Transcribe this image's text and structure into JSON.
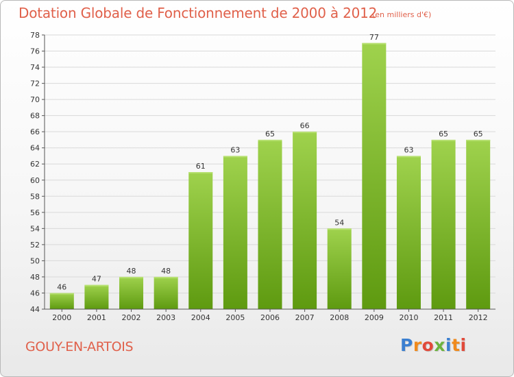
{
  "header": {
    "title": "Dotation Globale de Fonctionnement de 2000 à 2012",
    "unit": "(en milliers d'€)"
  },
  "footer": {
    "city": "GOUY-EN-ARTOIS",
    "logo_letters": [
      "P",
      "r",
      "o",
      "x",
      "i",
      "t",
      "i"
    ]
  },
  "colors": {
    "title": "#e0604a",
    "bar_light": "#9fd24d",
    "bar_dark": "#5e9a10",
    "grid": "#d9d9d9",
    "axis": "#555555",
    "logo": [
      "#3b7fd0",
      "#f08a1c",
      "#e14a3a",
      "#6cb33e",
      "#3b7fd0",
      "#f08a1c",
      "#e14a3a"
    ]
  },
  "chart_data": {
    "type": "bar",
    "categories": [
      "2000",
      "2001",
      "2002",
      "2003",
      "2004",
      "2005",
      "2006",
      "2007",
      "2008",
      "2009",
      "2010",
      "2011",
      "2012"
    ],
    "values": [
      46,
      47,
      48,
      48,
      61,
      63,
      65,
      66,
      54,
      77,
      63,
      65,
      65
    ],
    "title": "Dotation Globale de Fonctionnement de 2000 à 2012",
    "subtitle": "(en milliers d'€)",
    "xlabel": "",
    "ylabel": "",
    "ylim": [
      44,
      78
    ],
    "ytick_step": 2,
    "grid": true,
    "data_labels": true
  }
}
